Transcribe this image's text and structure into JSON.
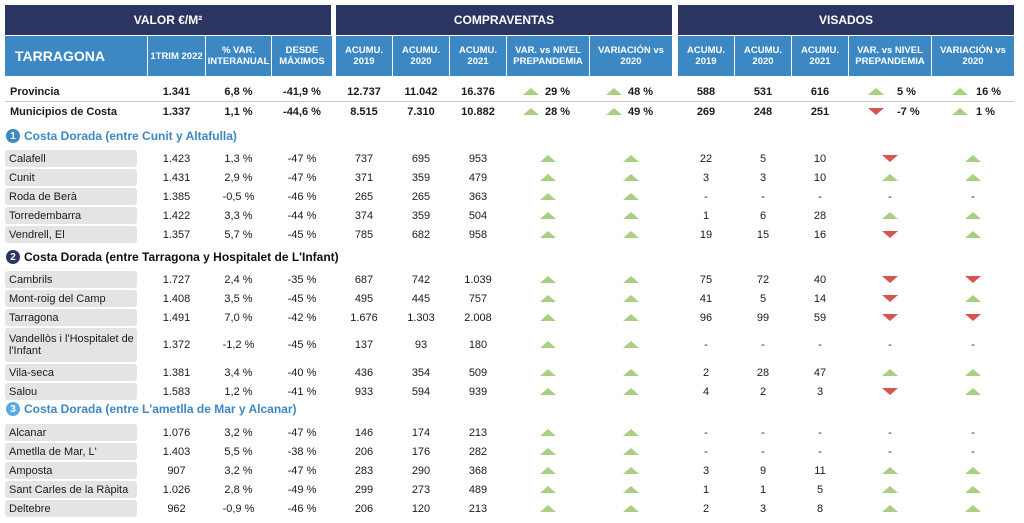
{
  "headers": {
    "valor": "VALOR €/M²",
    "compraventas": "COMPRAVENTAS",
    "visados": "VISADOS",
    "region": "TARRAGONA",
    "cols": [
      "1TRIM 2022",
      "% VAR. INTERANUAL",
      "DESDE MÁXIMOS",
      "ACUMU. 2019",
      "ACUMU. 2020",
      "ACUMU. 2021",
      "VAR. vs NIVEL PREPANDEMIA",
      "VARIACIÓN vs 2020",
      "ACUMU. 2019",
      "ACUMU. 2020",
      "ACUMU. 2021",
      "VAR. vs NIVEL PREPANDEMIA",
      "VARIACIÓN vs 2020"
    ]
  },
  "summary": [
    {
      "name": "Provincia",
      "v": [
        "1.341",
        "6,8 %",
        "-41,9 %",
        "12.737",
        "11.042",
        "16.376"
      ],
      "cp_pre": {
        "dir": "up",
        "txt": "29 %"
      },
      "cp_var": {
        "dir": "up",
        "txt": "48 %"
      },
      "vis": [
        "588",
        "531",
        "616"
      ],
      "vis_pre": {
        "dir": "up",
        "txt": "5 %"
      },
      "vis_var": {
        "dir": "up",
        "txt": "16 %"
      }
    },
    {
      "name": "Municipios de Costa",
      "v": [
        "1.337",
        "1,1 %",
        "-44,6 %",
        "8.515",
        "7.310",
        "10.882"
      ],
      "cp_pre": {
        "dir": "up",
        "txt": "28 %"
      },
      "cp_var": {
        "dir": "up",
        "txt": "49 %"
      },
      "vis": [
        "269",
        "248",
        "251"
      ],
      "vis_pre": {
        "dir": "down",
        "txt": "-7 %"
      },
      "vis_var": {
        "dir": "up",
        "txt": "1 %"
      }
    }
  ],
  "sections": [
    {
      "num": "1",
      "title": "Costa Dorada (entre Cunit y Altafulla)",
      "style": "sec-blue",
      "rows": [
        {
          "name": "Calafell",
          "v": [
            "1.423",
            "1,3 %",
            "-47 %",
            "737",
            "695",
            "953"
          ],
          "cp": [
            "up",
            "up"
          ],
          "vis": [
            "22",
            "5",
            "10"
          ],
          "va": [
            "down",
            "up"
          ]
        },
        {
          "name": "Cunit",
          "v": [
            "1.431",
            "2,9 %",
            "-47 %",
            "371",
            "359",
            "479"
          ],
          "cp": [
            "up",
            "up"
          ],
          "vis": [
            "3",
            "3",
            "10"
          ],
          "va": [
            "up",
            "up"
          ]
        },
        {
          "name": "Roda de Berà",
          "v": [
            "1.385",
            "-0,5 %",
            "-46 %",
            "265",
            "265",
            "363"
          ],
          "cp": [
            "up",
            "up"
          ],
          "vis": [
            "-",
            "-",
            "-"
          ],
          "va": [
            "-",
            "-"
          ]
        },
        {
          "name": "Torredembarra",
          "v": [
            "1.422",
            "3,3 %",
            "-44 %",
            "374",
            "359",
            "504"
          ],
          "cp": [
            "up",
            "up"
          ],
          "vis": [
            "1",
            "6",
            "28"
          ],
          "va": [
            "up",
            "up"
          ]
        },
        {
          "name": "Vendrell, El",
          "v": [
            "1.357",
            "5,7 %",
            "-45 %",
            "785",
            "682",
            "958"
          ],
          "cp": [
            "up",
            "up"
          ],
          "vis": [
            "19",
            "15",
            "16"
          ],
          "va": [
            "down",
            "up"
          ]
        }
      ]
    },
    {
      "num": "2",
      "title": "Costa Dorada (entre Tarragona y Hospitalet de L'Infant)",
      "style": "sec-dark",
      "rows": [
        {
          "name": "Cambrils",
          "v": [
            "1.727",
            "2,4 %",
            "-35 %",
            "687",
            "742",
            "1.039"
          ],
          "cp": [
            "up",
            "up"
          ],
          "vis": [
            "75",
            "72",
            "40"
          ],
          "va": [
            "down",
            "down"
          ]
        },
        {
          "name": "Mont-roig del Camp",
          "v": [
            "1.408",
            "3,5 %",
            "-45 %",
            "495",
            "445",
            "757"
          ],
          "cp": [
            "up",
            "up"
          ],
          "vis": [
            "41",
            "5",
            "14"
          ],
          "va": [
            "down",
            "up"
          ]
        },
        {
          "name": "Tarragona",
          "v": [
            "1.491",
            "7,0 %",
            "-42 %",
            "1.676",
            "1.303",
            "2.008"
          ],
          "cp": [
            "up",
            "up"
          ],
          "vis": [
            "96",
            "99",
            "59"
          ],
          "va": [
            "down",
            "down"
          ]
        },
        {
          "name": "Vandellòs i l'Hospitalet de l'Infant",
          "v": [
            "1.372",
            "-1,2 %",
            "-45 %",
            "137",
            "93",
            "180"
          ],
          "cp": [
            "up",
            "up"
          ],
          "vis": [
            "-",
            "-",
            "-"
          ],
          "va": [
            "-",
            "-"
          ],
          "tall": true
        },
        {
          "name": "Vila-seca",
          "v": [
            "1.381",
            "3,4 %",
            "-40 %",
            "436",
            "354",
            "509"
          ],
          "cp": [
            "up",
            "up"
          ],
          "vis": [
            "2",
            "28",
            "47"
          ],
          "va": [
            "up",
            "up"
          ]
        },
        {
          "name": "Salou",
          "v": [
            "1.583",
            "1,2 %",
            "-41 %",
            "933",
            "594",
            "939"
          ],
          "cp": [
            "up",
            "up"
          ],
          "vis": [
            "4",
            "2",
            "3"
          ],
          "va": [
            "down",
            "up"
          ]
        }
      ]
    },
    {
      "num": "3",
      "title": "Costa Dorada (entre L'ametlla de Mar y Alcanar)",
      "style": "sec-light",
      "rows": [
        {
          "name": "Alcanar",
          "v": [
            "1.076",
            "3,2 %",
            "-47 %",
            "146",
            "174",
            "213"
          ],
          "cp": [
            "up",
            "up"
          ],
          "vis": [
            "-",
            "-",
            "-"
          ],
          "va": [
            "-",
            "-"
          ]
        },
        {
          "name": "Ametlla de Mar, L'",
          "v": [
            "1.403",
            "5,5 %",
            "-38 %",
            "206",
            "176",
            "282"
          ],
          "cp": [
            "up",
            "up"
          ],
          "vis": [
            "-",
            "-",
            "-"
          ],
          "va": [
            "-",
            "-"
          ]
        },
        {
          "name": "Amposta",
          "v": [
            "907",
            "3,2 %",
            "-47 %",
            "283",
            "290",
            "368"
          ],
          "cp": [
            "up",
            "up"
          ],
          "vis": [
            "3",
            "9",
            "11"
          ],
          "va": [
            "up",
            "up"
          ]
        },
        {
          "name": "Sant Carles de la Ràpita",
          "v": [
            "1.026",
            "2,8 %",
            "-49 %",
            "299",
            "273",
            "489"
          ],
          "cp": [
            "up",
            "up"
          ],
          "vis": [
            "1",
            "1",
            "5"
          ],
          "va": [
            "up",
            "up"
          ]
        },
        {
          "name": "Deltebre",
          "v": [
            "962",
            "-0,9 %",
            "-46 %",
            "206",
            "120",
            "213"
          ],
          "cp": [
            "up",
            "up"
          ],
          "vis": [
            "2",
            "3",
            "8"
          ],
          "va": [
            "up",
            "up"
          ]
        }
      ]
    }
  ]
}
